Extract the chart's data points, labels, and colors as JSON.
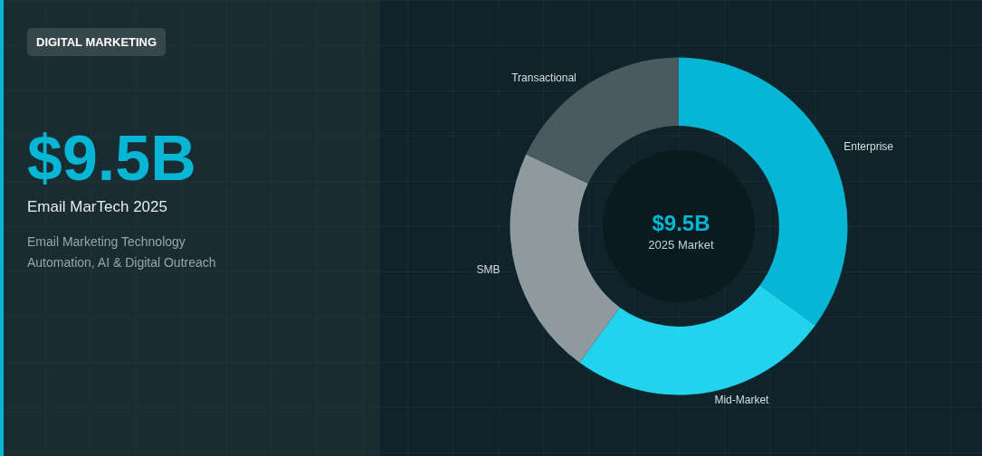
{
  "chart_data": {
    "type": "donut",
    "title": "Email MarTech 2025",
    "subtitle": "Email Marketing Technology\nAutomation, AI & Digital Outreach",
    "annotations": [
      "DIGITAL MARKETING",
      "$9.5B",
      "$9.5B",
      "2025 Market"
    ],
    "categories": [
      "Enterprise",
      "Mid-Market",
      "SMB",
      "Transactional"
    ],
    "values": [
      35,
      25,
      22,
      18
    ],
    "colors": [
      "#06b6d4",
      "#22d3ee",
      "#8e9a9d",
      "#4a5b5f"
    ],
    "legend": false
  }
}
